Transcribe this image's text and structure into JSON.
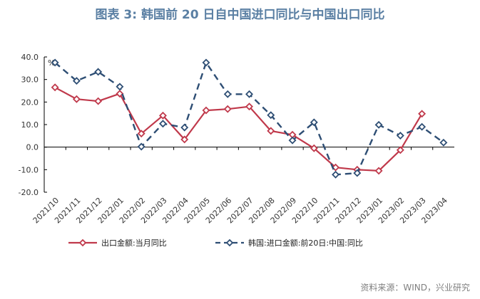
{
  "title": "图表 3:  韩国前 20 日自中国进口同比与中国出口同比",
  "source": "资料来源：WIND，兴业研究",
  "chart_data": {
    "type": "line",
    "title": "图表 3:  韩国前 20 日自中国进口同比与中国出口同比",
    "ylabel": "%",
    "xlabel": "",
    "ylim": [
      -20,
      40
    ],
    "yticks": [
      "40.0",
      "30.0",
      "20.0",
      "10.0",
      "0.0",
      "-10.0",
      "-20.0"
    ],
    "categories": [
      "2021/10",
      "2021/11",
      "2021/12",
      "2022/01",
      "2022/02",
      "2022/03",
      "2022/04",
      "2022/05",
      "2022/06",
      "2022/07",
      "2022/08",
      "2022/09",
      "2022/10",
      "2022/11",
      "2022/12",
      "2023/01",
      "2023/02",
      "2023/03",
      "2023/04"
    ],
    "legend_position": "bottom",
    "series": [
      {
        "name": "出口金额:当月同比",
        "color": "#c0394b",
        "style": "solid",
        "values": [
          26.5,
          21.3,
          20.4,
          23.7,
          6.0,
          14.0,
          3.4,
          16.3,
          16.9,
          18.0,
          7.2,
          5.5,
          -0.5,
          -9.0,
          -10.0,
          -10.5,
          -1.3,
          14.8,
          null
        ]
      },
      {
        "name": "韩国:进口金额:前20日:中国:同比",
        "color": "#2e4e74",
        "style": "dashed",
        "values": [
          37.5,
          29.4,
          33.4,
          26.8,
          0.2,
          10.4,
          8.7,
          37.5,
          23.5,
          23.5,
          14.2,
          3.0,
          11.0,
          -12.2,
          -11.5,
          9.9,
          5.1,
          9.0,
          2.0
        ]
      }
    ]
  }
}
